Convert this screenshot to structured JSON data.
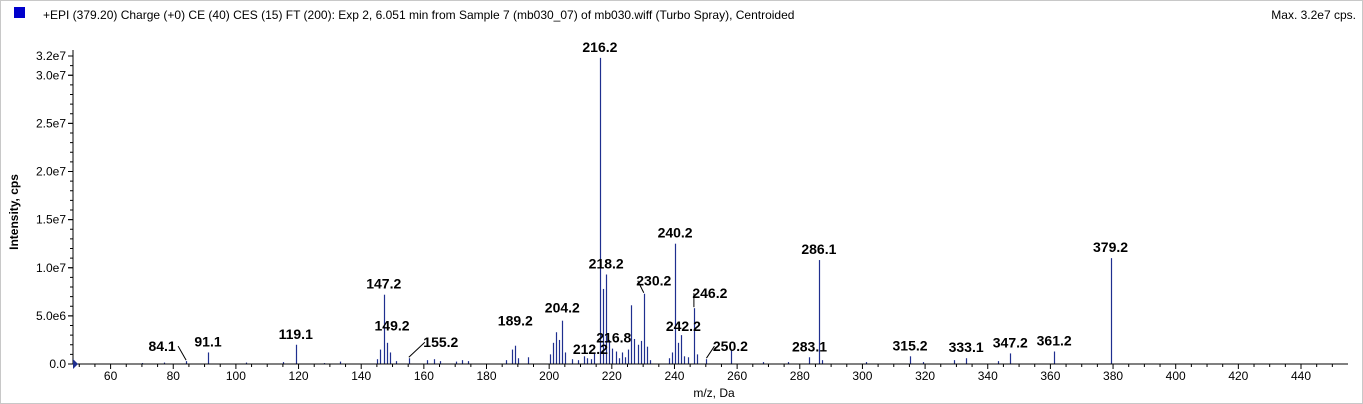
{
  "header": {
    "title": "+EPI (379.20) Charge (+0) CE (40) CES (15) FT (200): Exp 2, 6.051 min from Sample 7 (mb030_07) of mb030.wiff (Turbo Spray), Centroided",
    "max_label": "Max. 3.2e7 cps."
  },
  "colors": {
    "series": "#1f2f8f",
    "legend_swatch": "#0000cc",
    "axis": "#000000"
  },
  "chart_data": {
    "type": "bar",
    "xlabel": "m/z, Da",
    "ylabel": "Intensity, cps",
    "xlim": [
      48,
      455
    ],
    "ylim": [
      0,
      32000000
    ],
    "x_ticks": [
      60,
      80,
      100,
      120,
      140,
      160,
      180,
      200,
      220,
      240,
      260,
      280,
      300,
      320,
      340,
      360,
      380,
      400,
      420,
      440
    ],
    "y_ticks": [
      {
        "value": 0,
        "label": "0.0"
      },
      {
        "value": 5000000,
        "label": "5.0e6"
      },
      {
        "value": 10000000,
        "label": "1.0e7"
      },
      {
        "value": 15000000,
        "label": "1.5e7"
      },
      {
        "value": 20000000,
        "label": "2.0e7"
      },
      {
        "value": 25000000,
        "label": "2.5e7"
      },
      {
        "value": 30000000,
        "label": "3.0e7"
      },
      {
        "value": 32000000,
        "label": "3.2e7"
      }
    ],
    "peaks": [
      {
        "x": 70.1,
        "y": 100000
      },
      {
        "x": 77.0,
        "y": 150000
      },
      {
        "x": 84.1,
        "y": 300000
      },
      {
        "x": 91.1,
        "y": 1200000
      },
      {
        "x": 103.1,
        "y": 150000
      },
      {
        "x": 115.1,
        "y": 200000
      },
      {
        "x": 119.1,
        "y": 2000000
      },
      {
        "x": 128.1,
        "y": 100000
      },
      {
        "x": 133.1,
        "y": 250000
      },
      {
        "x": 145.1,
        "y": 500000
      },
      {
        "x": 146.1,
        "y": 1500000
      },
      {
        "x": 147.2,
        "y": 7200000
      },
      {
        "x": 148.2,
        "y": 2200000
      },
      {
        "x": 149.2,
        "y": 1200000
      },
      {
        "x": 151.1,
        "y": 300000
      },
      {
        "x": 155.2,
        "y": 600000
      },
      {
        "x": 161.1,
        "y": 400000
      },
      {
        "x": 163.1,
        "y": 500000
      },
      {
        "x": 165.1,
        "y": 300000
      },
      {
        "x": 170.1,
        "y": 250000
      },
      {
        "x": 172.1,
        "y": 400000
      },
      {
        "x": 174.1,
        "y": 300000
      },
      {
        "x": 186.2,
        "y": 400000
      },
      {
        "x": 188.2,
        "y": 1500000
      },
      {
        "x": 189.2,
        "y": 1900000
      },
      {
        "x": 190.2,
        "y": 600000
      },
      {
        "x": 193.2,
        "y": 700000
      },
      {
        "x": 200.2,
        "y": 1000000
      },
      {
        "x": 201.2,
        "y": 2200000
      },
      {
        "x": 202.2,
        "y": 3300000
      },
      {
        "x": 203.2,
        "y": 2500000
      },
      {
        "x": 204.2,
        "y": 4500000
      },
      {
        "x": 205.2,
        "y": 1200000
      },
      {
        "x": 207.2,
        "y": 500000
      },
      {
        "x": 209.2,
        "y": 400000
      },
      {
        "x": 211.2,
        "y": 800000
      },
      {
        "x": 212.2,
        "y": 600000
      },
      {
        "x": 213.2,
        "y": 500000
      },
      {
        "x": 214.2,
        "y": 1200000
      },
      {
        "x": 216.2,
        "y": 31800000
      },
      {
        "x": 217.2,
        "y": 7800000
      },
      {
        "x": 218.2,
        "y": 9300000
      },
      {
        "x": 219.2,
        "y": 2500000
      },
      {
        "x": 220.2,
        "y": 1600000
      },
      {
        "x": 221.2,
        "y": 1300000
      },
      {
        "x": 222.2,
        "y": 600000
      },
      {
        "x": 223.2,
        "y": 1200000
      },
      {
        "x": 224.2,
        "y": 700000
      },
      {
        "x": 225.2,
        "y": 1500000
      },
      {
        "x": 226.2,
        "y": 6100000
      },
      {
        "x": 227.2,
        "y": 2600000
      },
      {
        "x": 228.2,
        "y": 2000000
      },
      {
        "x": 229.2,
        "y": 2400000
      },
      {
        "x": 230.2,
        "y": 7300000
      },
      {
        "x": 231.2,
        "y": 1800000
      },
      {
        "x": 232.2,
        "y": 400000
      },
      {
        "x": 238.2,
        "y": 600000
      },
      {
        "x": 239.2,
        "y": 1200000
      },
      {
        "x": 240.2,
        "y": 12500000
      },
      {
        "x": 241.2,
        "y": 2200000
      },
      {
        "x": 242.2,
        "y": 3000000
      },
      {
        "x": 243.2,
        "y": 800000
      },
      {
        "x": 244.2,
        "y": 700000
      },
      {
        "x": 246.2,
        "y": 5800000
      },
      {
        "x": 247.2,
        "y": 1000000
      },
      {
        "x": 250.2,
        "y": 500000
      },
      {
        "x": 258.2,
        "y": 1500000
      },
      {
        "x": 268.2,
        "y": 200000
      },
      {
        "x": 276.1,
        "y": 200000
      },
      {
        "x": 283.1,
        "y": 700000
      },
      {
        "x": 286.1,
        "y": 10800000
      },
      {
        "x": 287.1,
        "y": 400000
      },
      {
        "x": 301.2,
        "y": 200000
      },
      {
        "x": 315.2,
        "y": 800000
      },
      {
        "x": 319.2,
        "y": 200000
      },
      {
        "x": 329.1,
        "y": 400000
      },
      {
        "x": 333.1,
        "y": 600000
      },
      {
        "x": 343.2,
        "y": 300000
      },
      {
        "x": 347.2,
        "y": 1100000
      },
      {
        "x": 361.2,
        "y": 1300000
      },
      {
        "x": 379.2,
        "y": 11000000
      }
    ],
    "annotations": [
      {
        "label": "84.1",
        "x": 84.1,
        "y": 300000,
        "dx": -24,
        "dy": -10,
        "leader": true
      },
      {
        "label": "91.1",
        "x": 91.1,
        "y": 1200000,
        "dx": 0,
        "dy": -6,
        "leader": false
      },
      {
        "label": "119.1",
        "x": 119.1,
        "y": 2000000,
        "dx": 0,
        "dy": -6,
        "leader": false
      },
      {
        "label": "147.2",
        "x": 147.2,
        "y": 7200000,
        "dx": 0,
        "dy": -6,
        "leader": false
      },
      {
        "label": "149.2",
        "x": 149.2,
        "y": 1200000,
        "dx": 2,
        "dy": -22,
        "leader": false
      },
      {
        "label": "155.2",
        "x": 155.2,
        "y": 600000,
        "dx": 32,
        "dy": -11,
        "leader": true
      },
      {
        "label": "189.2",
        "x": 189.2,
        "y": 1900000,
        "dx": 0,
        "dy": -20,
        "leader": false
      },
      {
        "label": "204.2",
        "x": 204.2,
        "y": 4500000,
        "dx": 0,
        "dy": -8,
        "leader": false
      },
      {
        "label": "212.2",
        "x": 212.2,
        "y": 600000,
        "dx": 3,
        "dy": -4,
        "leader": false
      },
      {
        "label": "216.2",
        "x": 216.2,
        "y": 31800000,
        "dx": 0,
        "dy": -6,
        "leader": false
      },
      {
        "label": "216.8",
        "x": 216.8,
        "y": 1200000,
        "dx": 12,
        "dy": -10,
        "leader": false
      },
      {
        "label": "218.2",
        "x": 218.2,
        "y": 9300000,
        "dx": 0,
        "dy": -6,
        "leader": false
      },
      {
        "label": "230.2",
        "x": 230.2,
        "y": 7300000,
        "dx": 10,
        "dy": -8,
        "leader": true
      },
      {
        "label": "240.2",
        "x": 240.2,
        "y": 12500000,
        "dx": 0,
        "dy": -6,
        "leader": false
      },
      {
        "label": "242.2",
        "x": 242.2,
        "y": 3000000,
        "dx": 2,
        "dy": -4,
        "leader": false
      },
      {
        "label": "246.2",
        "x": 246.2,
        "y": 5800000,
        "dx": 16,
        "dy": -10,
        "leader": true
      },
      {
        "label": "250.2",
        "x": 250.2,
        "y": 500000,
        "dx": 24,
        "dy": -8,
        "leader": true
      },
      {
        "label": "283.1",
        "x": 283.1,
        "y": 700000,
        "dx": 0,
        "dy": -6,
        "leader": false
      },
      {
        "label": "286.1",
        "x": 286.1,
        "y": 10800000,
        "dx": 0,
        "dy": -6,
        "leader": false
      },
      {
        "label": "315.2",
        "x": 315.2,
        "y": 800000,
        "dx": 0,
        "dy": -6,
        "leader": false
      },
      {
        "label": "333.1",
        "x": 333.1,
        "y": 600000,
        "dx": 0,
        "dy": -6,
        "leader": false
      },
      {
        "label": "347.2",
        "x": 347.2,
        "y": 1100000,
        "dx": 0,
        "dy": -6,
        "leader": false
      },
      {
        "label": "361.2",
        "x": 361.2,
        "y": 1300000,
        "dx": 0,
        "dy": -6,
        "leader": false
      },
      {
        "label": "379.2",
        "x": 379.2,
        "y": 11000000,
        "dx": 0,
        "dy": -6,
        "leader": false
      }
    ]
  }
}
